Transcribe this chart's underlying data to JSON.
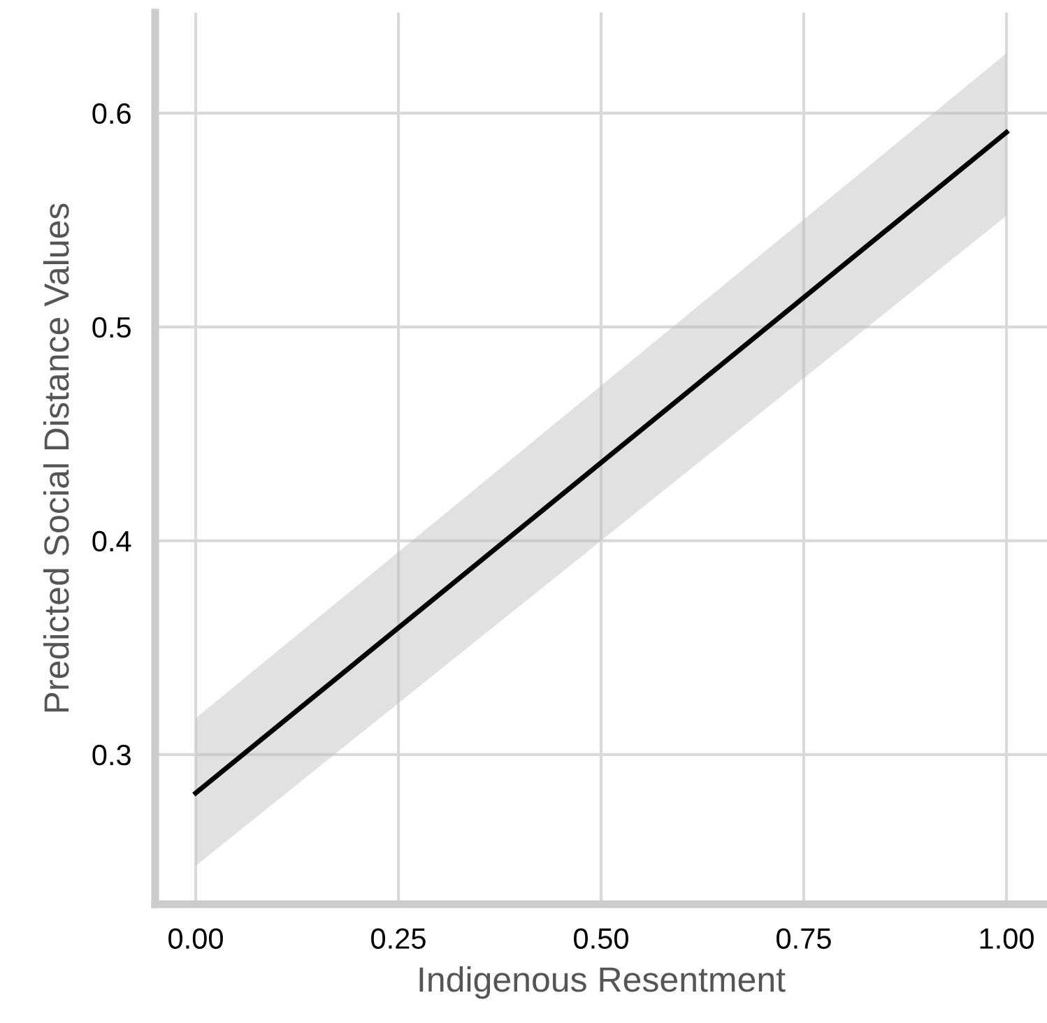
{
  "chart_data": {
    "type": "line",
    "xlabel": "Indigenous Resentment",
    "ylabel": "Predicted Social Distance Values",
    "x": [
      0,
      1
    ],
    "series": [
      {
        "color": "#000000",
        "values": [
          0.282,
          0.591
        ],
        "lower": [
          0.248,
          0.552
        ],
        "upper": [
          0.317,
          0.628
        ]
      }
    ],
    "xlim": [
      -0.05,
      1.05
    ],
    "ylim": [
      0.23,
      0.647
    ],
    "xticks": [
      {
        "value": 0,
        "label": "0.00"
      },
      {
        "value": 0.25,
        "label": "0.25"
      },
      {
        "value": 0.5,
        "label": "0.50"
      },
      {
        "value": 0.75,
        "label": "0.75"
      },
      {
        "value": 1,
        "label": "1.00"
      }
    ],
    "yticks": [
      0.3,
      0.4,
      0.5,
      0.6
    ],
    "grid": true
  }
}
